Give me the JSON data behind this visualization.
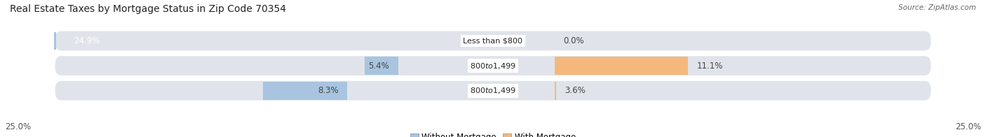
{
  "title": "Real Estate Taxes by Mortgage Status in Zip Code 70354",
  "source": "Source: ZipAtlas.com",
  "rows": [
    {
      "label": "Less than $800",
      "without_mortgage": 24.9,
      "with_mortgage": 0.0
    },
    {
      "label": "$800 to $1,499",
      "without_mortgage": 5.4,
      "with_mortgage": 11.1
    },
    {
      "label": "$800 to $1,499",
      "without_mortgage": 8.3,
      "with_mortgage": 3.6
    }
  ],
  "axis_max": 25.0,
  "color_without": "#a8c4e0",
  "color_with": "#f5b87c",
  "color_row_bg": "#e0e4ea",
  "color_bg": "#ffffff",
  "legend_without": "Without Mortgage",
  "legend_with": "With Mortgage",
  "axis_label_left": "25.0%",
  "axis_label_right": "25.0%",
  "title_fontsize": 10,
  "label_fontsize": 8.5,
  "tick_fontsize": 8.5,
  "source_fontsize": 7.5
}
